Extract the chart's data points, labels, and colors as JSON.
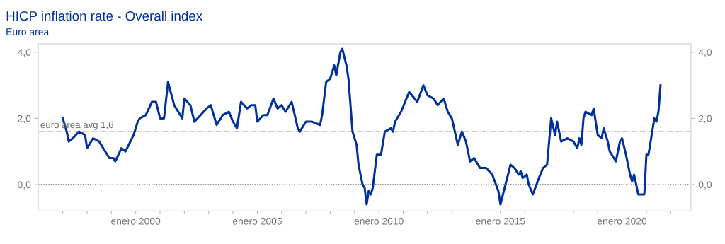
{
  "chart_data": {
    "type": "line",
    "title": "HICP inflation rate - Overall index",
    "subtitle": "Euro area",
    "x": [
      "1997-01",
      "1997-03",
      "1997-04",
      "1997-06",
      "1997-09",
      "1997-12",
      "1998-01",
      "1998-04",
      "1998-07",
      "1998-10",
      "1998-12",
      "1999-02",
      "1999-03",
      "1999-06",
      "1999-08",
      "1999-12",
      "2000-02",
      "2000-03",
      "2000-06",
      "2000-09",
      "2000-11",
      "2001-01",
      "2001-03",
      "2001-05",
      "2001-08",
      "2001-11",
      "2001-12",
      "2002-01",
      "2002-04",
      "2002-06",
      "2002-09",
      "2002-12",
      "2003-02",
      "2003-05",
      "2003-08",
      "2003-11",
      "2004-01",
      "2004-03",
      "2004-05",
      "2004-08",
      "2004-10",
      "2004-12",
      "2005-01",
      "2005-04",
      "2005-06",
      "2005-09",
      "2005-11",
      "2006-01",
      "2006-03",
      "2006-06",
      "2006-09",
      "2006-10",
      "2007-01",
      "2007-04",
      "2007-08",
      "2007-09",
      "2007-11",
      "2008-01",
      "2008-03",
      "2008-04",
      "2008-06",
      "2008-07",
      "2008-09",
      "2008-10",
      "2008-12",
      "2009-02",
      "2009-03",
      "2009-05",
      "2009-06",
      "2009-07",
      "2009-08",
      "2009-09",
      "2009-10",
      "2009-12",
      "2010-02",
      "2010-04",
      "2010-07",
      "2010-08",
      "2010-09",
      "2010-12",
      "2011-04",
      "2011-08",
      "2011-11",
      "2012-01",
      "2012-04",
      "2012-06",
      "2012-09",
      "2012-11",
      "2013-01",
      "2013-04",
      "2013-06",
      "2013-08",
      "2013-10",
      "2013-12",
      "2014-03",
      "2014-06",
      "2014-09",
      "2014-12",
      "2015-01",
      "2015-06",
      "2015-08",
      "2015-10",
      "2015-11",
      "2015-12",
      "2016-02",
      "2016-03",
      "2016-05",
      "2016-08",
      "2016-10",
      "2016-12",
      "2017-02",
      "2017-04",
      "2017-05",
      "2017-07",
      "2017-10",
      "2018-01",
      "2018-03",
      "2018-04",
      "2018-05",
      "2018-06",
      "2018-07",
      "2018-10",
      "2018-11",
      "2019-01",
      "2019-03",
      "2019-04",
      "2019-06",
      "2019-07",
      "2019-09",
      "2019-10",
      "2019-12",
      "2020-01",
      "2020-03",
      "2020-05",
      "2020-06",
      "2020-07",
      "2020-09",
      "2020-12",
      "2021-01",
      "2021-02",
      "2021-05",
      "2021-06",
      "2021-07",
      "2021-08"
    ],
    "series": [
      {
        "color": "#003299",
        "values": [
          2.0,
          1.6,
          1.3,
          1.4,
          1.6,
          1.5,
          1.1,
          1.4,
          1.3,
          1.0,
          0.8,
          0.8,
          0.7,
          1.1,
          1.0,
          1.5,
          1.9,
          2.0,
          2.1,
          2.5,
          2.5,
          2.0,
          2.0,
          3.1,
          2.4,
          2.1,
          2.0,
          2.6,
          2.4,
          1.9,
          2.1,
          2.3,
          2.4,
          1.8,
          2.1,
          2.2,
          1.9,
          1.7,
          2.5,
          2.3,
          2.4,
          2.4,
          1.9,
          2.1,
          2.1,
          2.6,
          2.3,
          2.4,
          2.2,
          2.5,
          1.7,
          1.6,
          1.9,
          1.9,
          1.8,
          2.1,
          3.1,
          3.2,
          3.6,
          3.3,
          4.0,
          4.1,
          3.6,
          3.2,
          1.6,
          1.2,
          0.6,
          0.0,
          -0.1,
          -0.6,
          -0.2,
          -0.3,
          -0.1,
          0.9,
          0.9,
          1.6,
          1.7,
          1.6,
          1.9,
          2.2,
          2.8,
          2.5,
          3.0,
          2.7,
          2.6,
          2.4,
          2.6,
          2.2,
          2.0,
          1.2,
          1.6,
          1.3,
          0.7,
          0.8,
          0.5,
          0.5,
          0.3,
          -0.2,
          -0.6,
          0.6,
          0.5,
          0.3,
          0.4,
          0.2,
          0.3,
          0.0,
          -0.3,
          0.2,
          0.5,
          0.6,
          2.0,
          1.5,
          1.9,
          1.3,
          1.4,
          1.3,
          1.1,
          1.4,
          1.2,
          2.0,
          2.2,
          2.1,
          2.3,
          1.5,
          1.4,
          1.7,
          1.3,
          1.0,
          0.8,
          0.7,
          1.3,
          1.4,
          0.9,
          0.3,
          0.1,
          0.3,
          -0.3,
          -0.3,
          0.9,
          0.9,
          2.0,
          1.9,
          2.2,
          3.0
        ]
      }
    ],
    "xlim": [
      "1996-01",
      "2022-11"
    ],
    "xticks": [
      {
        "value": "1997-01",
        "label": null
      },
      {
        "value": "1998-01",
        "label": null
      },
      {
        "value": "1999-01",
        "label": null
      },
      {
        "value": "2000-01",
        "label": "enero 2000"
      },
      {
        "value": "2001-01",
        "label": null
      },
      {
        "value": "2002-01",
        "label": null
      },
      {
        "value": "2003-01",
        "label": null
      },
      {
        "value": "2004-01",
        "label": null
      },
      {
        "value": "2005-01",
        "label": "enero 2005"
      },
      {
        "value": "2006-01",
        "label": null
      },
      {
        "value": "2007-01",
        "label": null
      },
      {
        "value": "2008-01",
        "label": null
      },
      {
        "value": "2009-01",
        "label": null
      },
      {
        "value": "2010-01",
        "label": "enero 2010"
      },
      {
        "value": "2011-01",
        "label": null
      },
      {
        "value": "2012-01",
        "label": null
      },
      {
        "value": "2013-01",
        "label": null
      },
      {
        "value": "2014-01",
        "label": null
      },
      {
        "value": "2015-01",
        "label": "enero 2015"
      },
      {
        "value": "2016-01",
        "label": null
      },
      {
        "value": "2017-01",
        "label": null
      },
      {
        "value": "2018-01",
        "label": null
      },
      {
        "value": "2019-01",
        "label": null
      },
      {
        "value": "2020-01",
        "label": "enero 2020"
      },
      {
        "value": "2021-01",
        "label": null
      },
      {
        "value": "2022-01",
        "label": null
      }
    ],
    "ylim": [
      -0.8,
      4.25
    ],
    "yticks": [
      {
        "value": 0,
        "label": "0,0"
      },
      {
        "value": 2,
        "label": "2,0"
      },
      {
        "value": 4,
        "label": "4,0"
      }
    ],
    "y2lim": [
      -0.8,
      4.25
    ],
    "y2ticks": [
      {
        "value": 0,
        "label": "0,0"
      },
      {
        "value": 2,
        "label": "2,0"
      },
      {
        "value": 4,
        "label": "4,0"
      }
    ],
    "ref_lines": [
      {
        "axis": "y",
        "value": 1.6,
        "label": "euro area avg 1,6",
        "color": "#999999",
        "line_style": "dashed"
      },
      {
        "axis": "y",
        "value": 0,
        "label": null,
        "color": "#666666",
        "line_style": "dotted"
      }
    ],
    "grid": false,
    "legend": false,
    "marker": "none",
    "line_style": "solid"
  }
}
